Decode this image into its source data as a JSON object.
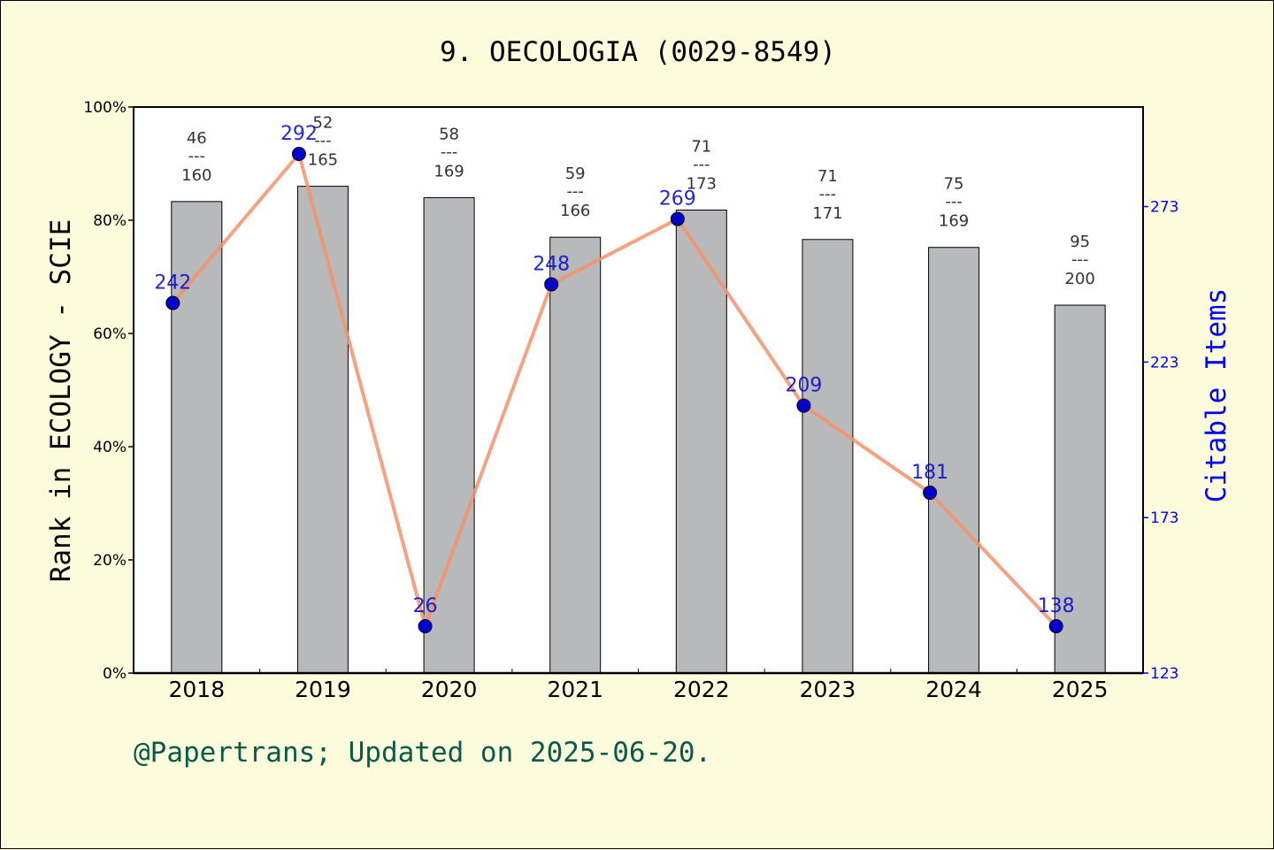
{
  "chart_data": {
    "type": "bar",
    "title": "9. OECOLOGIA (0029-8549)",
    "ylabel_left": "Rank in ECOLOGY - SCIE",
    "ylabel_right": "Citable Items",
    "categories": [
      "2018",
      "2019",
      "2020",
      "2021",
      "2022",
      "2023",
      "2024",
      "2025"
    ],
    "ylim_left": [
      0,
      100
    ],
    "yticks_left": [
      0,
      20,
      40,
      60,
      80,
      100
    ],
    "ytick_suffix_left": "%",
    "ylim_right": [
      123,
      305
    ],
    "yticks_right": [
      123,
      173,
      223,
      273
    ],
    "series": [
      {
        "kind": "bar",
        "percent": [
          83.3,
          86.0,
          84.0,
          77.0,
          81.8,
          76.6,
          75.2,
          65.0
        ],
        "rank": [
          "46",
          "52",
          "58",
          "59",
          "71",
          "71",
          "75",
          "95"
        ],
        "total": [
          "160",
          "165",
          "169",
          "166",
          "173",
          "171",
          "169",
          "200"
        ],
        "separator": "---",
        "color": "#b8b9ba"
      },
      {
        "kind": "line",
        "values": [
          242,
          292,
          26,
          248,
          269,
          209,
          181,
          138
        ],
        "point_labels": [
          "242",
          "292",
          "26",
          "248",
          "269",
          "209",
          "181",
          "138"
        ],
        "line_color": "#f4906a",
        "marker_color": "#0000cc"
      }
    ],
    "grid": false,
    "legend": "none"
  },
  "footer": "@Papertrans; Updated on 2025-06-20.",
  "colors": {
    "background": "#fcfcdc",
    "plot_background": "#ffffff",
    "right_axis": "#0000ff",
    "footer": "#0a5a4a"
  }
}
